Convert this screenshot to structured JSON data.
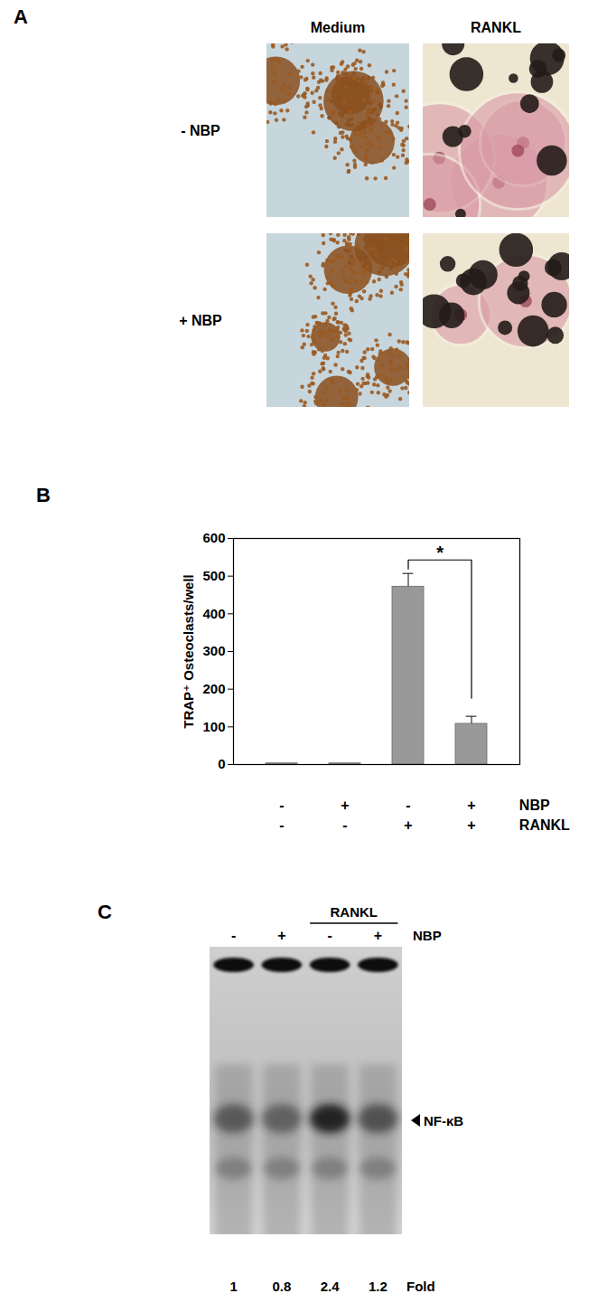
{
  "panel_a": {
    "label": "A",
    "columns": [
      "Medium",
      "RANKL"
    ],
    "rows": [
      "- NBP",
      "+ NBP"
    ]
  },
  "chart_data": {
    "type": "bar",
    "panel_label": "B",
    "ylabel": "TRAP⁺ Osteoclasts/well",
    "categories": [
      null,
      null,
      null,
      null
    ],
    "values": [
      3,
      3,
      472,
      108
    ],
    "errors": [
      null,
      null,
      35,
      20
    ],
    "factors": [
      {
        "name": "NBP",
        "levels": [
          "-",
          "+",
          "-",
          "+"
        ]
      },
      {
        "name": "RANKL",
        "levels": [
          "-",
          "-",
          "+",
          "+"
        ]
      }
    ],
    "significance": {
      "between": [
        2,
        3
      ],
      "label": "*"
    },
    "color": "#999999",
    "ylim": [
      0,
      600
    ],
    "yticks": [
      0,
      100,
      200,
      300,
      400,
      500,
      600
    ],
    "grid": false
  },
  "panel_c": {
    "label": "C",
    "group_label": "RANKL",
    "lane_factor": "NBP",
    "lanes": [
      "-",
      "+",
      "-",
      "+"
    ],
    "group_lanes": [
      2,
      3
    ],
    "band_label": "NF-κB",
    "fold_label": "Fold",
    "fold_values": [
      1,
      0.8,
      2.4,
      1.2
    ]
  }
}
